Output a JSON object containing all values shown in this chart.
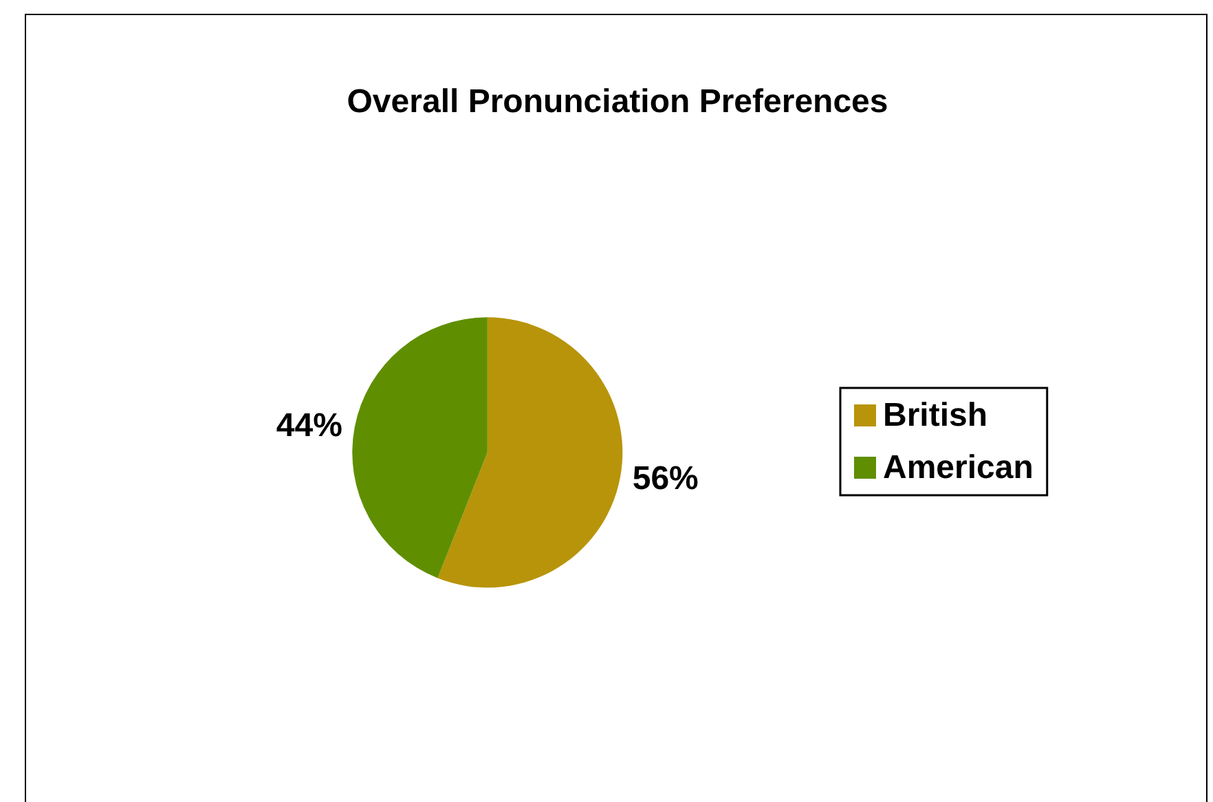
{
  "chart_data": {
    "type": "pie",
    "title": "Overall Pronunciation Preferences",
    "categories": [
      "British",
      "American"
    ],
    "values": [
      56,
      44
    ],
    "colors": [
      "#b8940a",
      "#5f8f00"
    ],
    "value_labels": [
      "56%",
      "44%"
    ],
    "legend": "right"
  }
}
